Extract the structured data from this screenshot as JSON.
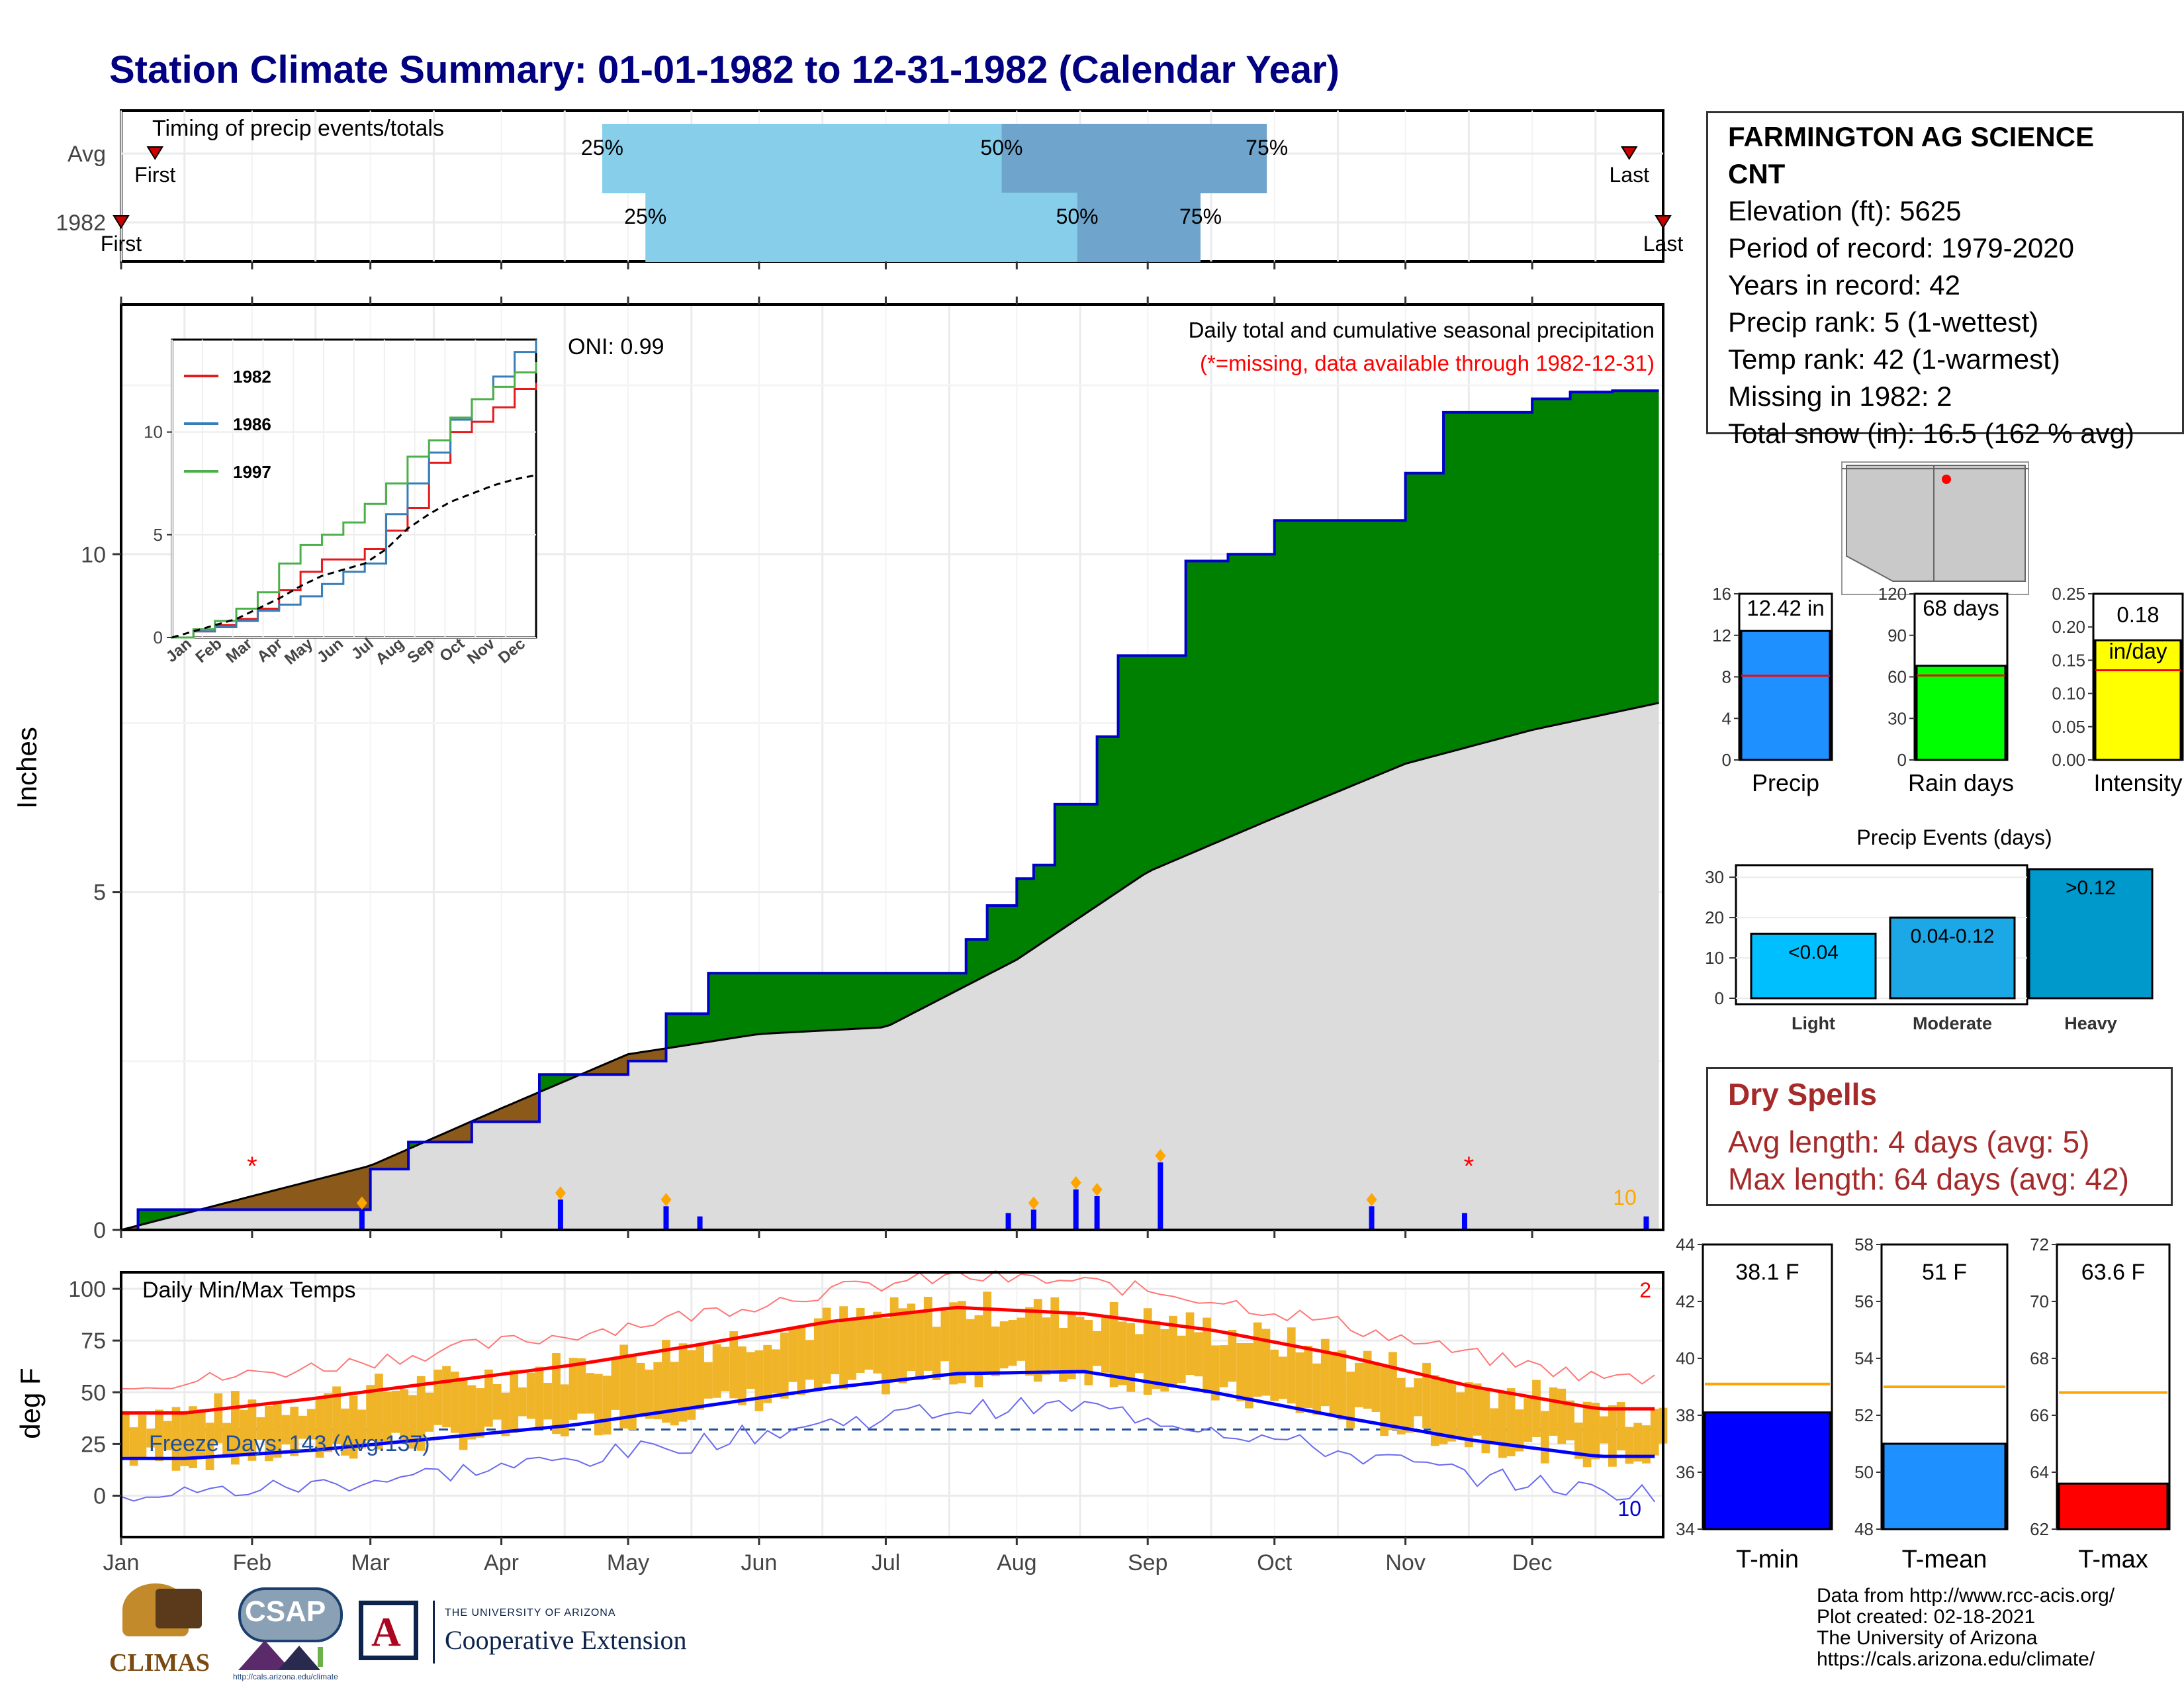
{
  "title": "Station Climate Summary: 01-01-1982 to 12-31-1982 (Calendar Year)",
  "timing": {
    "label": "Timing of precip events/totals",
    "rows": [
      {
        "name": "Avg",
        "first_label": "First",
        "last_label": "Last",
        "first_frac": 0.022,
        "last_frac": 0.978,
        "q25": 0.312,
        "q50": 0.571,
        "q75": 0.743
      },
      {
        "name": "1982",
        "first_label": "First",
        "last_label": "Last",
        "first_frac": 0.0,
        "last_frac": 1.0,
        "q25": 0.34,
        "q50": 0.62,
        "q75": 0.7
      }
    ],
    "q_labels": [
      "25%",
      "50%",
      "75%"
    ]
  },
  "station": {
    "name_line1": "FARMINGTON AG SCIENCE",
    "name_line2": "CNT",
    "lines": [
      "Elevation (ft): 5625",
      "Period of record: 1979-2020",
      "Years in record: 42",
      "Precip rank: 5 (1-wettest)",
      "Temp rank: 42 (1-warmest)",
      "Missing in 1982: 2",
      "Total snow (in): 16.5 (162 % avg)"
    ]
  },
  "precip_main": {
    "ylabel": "Inches",
    "yticks": [
      "0",
      "5",
      "10"
    ],
    "caption": "Daily total and cumulative seasonal precipitation",
    "missing_note": "(*=missing, data available through 1982-12-31)",
    "oni": "ONI: 0.99",
    "corner_count": "10"
  },
  "inset": {
    "legend": [
      "1982",
      "1986",
      "1997"
    ],
    "yticks": [
      "0",
      "5",
      "10"
    ],
    "xticks": [
      "Jan",
      "Feb",
      "Mar",
      "Apr",
      "May",
      "Jun",
      "Jul",
      "Aug",
      "Sep",
      "Oct",
      "Nov",
      "Dec"
    ],
    "colors": {
      "1982": "#e41a1c",
      "1986": "#377eb8",
      "1997": "#4daf4a"
    }
  },
  "temps_main": {
    "label": "Daily Min/Max Temps",
    "ylabel": "deg F",
    "yticks": [
      "0",
      "25",
      "50",
      "75",
      "100"
    ],
    "freeze": "Freeze Days: 143 (Avg:137)",
    "top_count": "2",
    "bottom_count": "10"
  },
  "months": [
    "Jan",
    "Feb",
    "Mar",
    "Apr",
    "May",
    "Jun",
    "Jul",
    "Aug",
    "Sep",
    "Oct",
    "Nov",
    "Dec"
  ],
  "summary_bars": [
    {
      "label": "Precip",
      "value_label": "12.42 in",
      "yticks": [
        "0",
        "4",
        "8",
        "12",
        "16"
      ]
    },
    {
      "label": "Rain days",
      "value_label": "68 days",
      "yticks": [
        "0",
        "30",
        "60",
        "90",
        "120"
      ]
    },
    {
      "label": "Intensity",
      "value_label": "0.18 in/day",
      "value_line1": "0.18",
      "value_line2": "in/day",
      "yticks": [
        "0.00",
        "0.05",
        "0.10",
        "0.15",
        "0.20",
        "0.25"
      ]
    }
  ],
  "events": {
    "title": "Precip Events (days)",
    "yticks": [
      "0",
      "10",
      "20",
      "30"
    ]
  },
  "dry_spells": {
    "title": "Dry Spells",
    "avg": "Avg length: 4 days (avg: 5)",
    "max": "Max length: 64 days (avg: 42)"
  },
  "temp_bars": [
    {
      "label": "T-min",
      "value_label": "38.1 F",
      "yticks": [
        "34",
        "36",
        "38",
        "40",
        "42",
        "44"
      ]
    },
    {
      "label": "T-mean",
      "value_label": "51 F",
      "yticks": [
        "48",
        "50",
        "52",
        "54",
        "56",
        "58"
      ]
    },
    {
      "label": "T-max",
      "value_label": "63.6 F",
      "yticks": [
        "62",
        "64",
        "66",
        "68",
        "70",
        "72"
      ]
    }
  ],
  "credits": [
    "Data from http://www.rcc-acis.org/",
    "Plot created: 02-18-2021",
    "The University of Arizona",
    "https://cals.arizona.edu/climate/"
  ],
  "logos": {
    "climas": "CLIMAS",
    "csap": "CSAP",
    "ua_small": "THE UNIVERSITY OF ARIZONA",
    "ua_big": "Cooperative Extension",
    "csap_url": "http://cals.arizona.edu/climate"
  },
  "colors": {
    "title": "#000080",
    "cum_precip": "#008000",
    "cum_outline": "#0000cd",
    "climatology": "#dcdcdc",
    "deficit": "#8b5a1a",
    "daily_bar": "#0000ff",
    "temp_bar": "#f0b428",
    "tmax_line": "#ff0000",
    "tmin_line": "#0000ff",
    "quartile_light": "#87ceeb",
    "quartile_dark": "#6fa5cc"
  },
  "chart_data": [
    {
      "type": "area",
      "title": "Daily total and cumulative seasonal precipitation",
      "ylabel": "Inches",
      "ylim": [
        0,
        13.5
      ],
      "series": [
        {
          "name": "1982",
          "x": [
            "01-01",
            "01-05",
            "02-01",
            "02-20",
            "03-01",
            "03-10",
            "03-25",
            "04-10",
            "05-01",
            "05-10",
            "05-20",
            "07-01",
            "07-20",
            "07-25",
            "08-01",
            "08-05",
            "08-10",
            "08-20",
            "08-25",
            "09-10",
            "09-20",
            "10-01",
            "11-01",
            "11-10",
            "12-01",
            "12-10",
            "12-20",
            "12-31"
          ],
          "values": [
            0.0,
            0.3,
            0.3,
            0.3,
            0.9,
            1.3,
            1.6,
            2.3,
            2.5,
            3.2,
            3.8,
            3.8,
            4.3,
            4.8,
            5.2,
            5.4,
            6.3,
            7.3,
            8.5,
            9.9,
            10.0,
            10.5,
            11.2,
            12.1,
            12.3,
            12.4,
            12.42,
            12.42
          ]
        },
        {
          "name": "climatology",
          "x": [
            "01-01",
            "02-01",
            "03-01",
            "04-01",
            "05-01",
            "06-01",
            "07-01",
            "08-01",
            "09-01",
            "10-01",
            "11-01",
            "12-01",
            "12-31"
          ],
          "values": [
            0.0,
            0.5,
            0.95,
            1.8,
            2.6,
            2.9,
            3.0,
            4.0,
            5.3,
            6.1,
            6.9,
            7.4,
            7.8
          ]
        }
      ],
      "daily_events": {
        "dates": [
          "02-27",
          "04-15",
          "05-10",
          "05-18",
          "07-30",
          "08-05",
          "08-15",
          "08-20",
          "09-04",
          "10-24",
          "11-15",
          "12-28"
        ],
        "values": [
          0.3,
          0.45,
          0.35,
          0.2,
          0.25,
          0.3,
          0.6,
          0.5,
          1.0,
          0.35,
          0.25,
          0.2
        ]
      }
    },
    {
      "type": "line",
      "title": "Daily Min/Max Temps",
      "ylabel": "deg F",
      "ylim": [
        -20,
        105
      ],
      "x": [
        "Jan",
        "Feb",
        "Mar",
        "Apr",
        "May",
        "Jun",
        "Jul",
        "Aug",
        "Sep",
        "Oct",
        "Nov",
        "Dec"
      ],
      "series": [
        {
          "name": "T-max avg",
          "values": [
            40,
            47,
            55,
            63,
            73,
            84,
            91,
            88,
            80,
            68,
            53,
            42
          ]
        },
        {
          "name": "T-min avg",
          "values": [
            18,
            22,
            28,
            34,
            43,
            52,
            59,
            60,
            50,
            38,
            27,
            19
          ]
        }
      ]
    },
    {
      "type": "bar",
      "categories": [
        "Precip",
        "Rain days",
        "Intensity"
      ],
      "values": [
        12.42,
        68,
        0.18
      ],
      "averages": [
        8.1,
        61,
        0.135
      ],
      "ylim": [
        [
          0,
          16
        ],
        [
          0,
          120
        ],
        [
          0,
          0.25
        ]
      ]
    },
    {
      "type": "bar",
      "title": "Precip Events (days)",
      "categories": [
        "Light",
        "Moderate",
        "Heavy"
      ],
      "bar_labels": [
        "<0.04",
        "0.04-0.12",
        ">0.12"
      ],
      "values": [
        16,
        20,
        32
      ],
      "ylim": [
        0,
        32
      ]
    },
    {
      "type": "bar",
      "categories": [
        "T-min",
        "T-mean",
        "T-max"
      ],
      "values": [
        38.1,
        51.0,
        63.6
      ],
      "averages": [
        39.1,
        53.0,
        66.8
      ],
      "ylim": [
        [
          34,
          44
        ],
        [
          48,
          58
        ],
        [
          62,
          72
        ]
      ]
    }
  ]
}
